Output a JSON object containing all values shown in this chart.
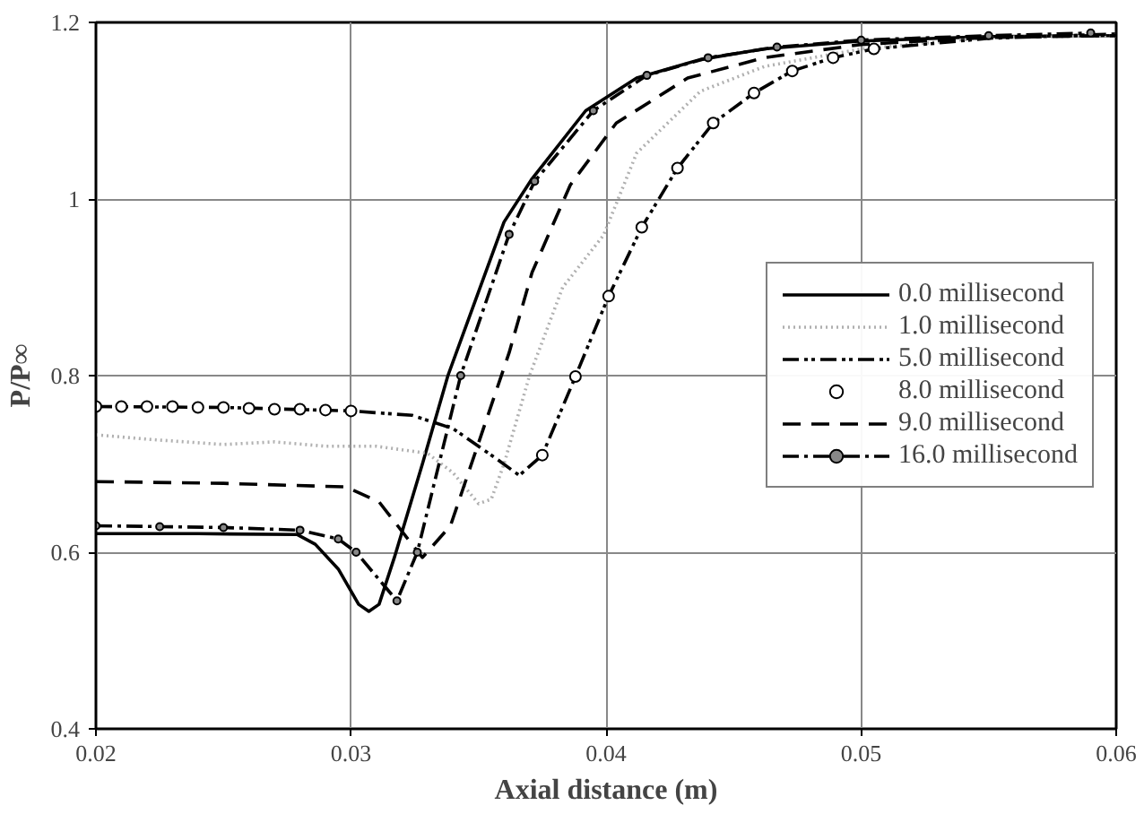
{
  "chart_data": {
    "type": "line",
    "xlabel": "Axial distance (m)",
    "ylabel": "P/P∞",
    "xlim": [
      0.02,
      0.06
    ],
    "ylim": [
      0.4,
      1.2
    ],
    "xticks": [
      0.02,
      0.03,
      0.04,
      0.05,
      0.06
    ],
    "yticks": [
      0.4,
      0.6,
      0.8,
      1,
      1.2
    ],
    "grid": true,
    "legend": "right",
    "series": [
      {
        "name": "0.0 millisecond",
        "color": "#000000",
        "line_style": "solid",
        "x": [
          0.02,
          0.024,
          0.0279,
          0.0286,
          0.0295,
          0.0303,
          0.0307,
          0.0311,
          0.0317,
          0.0328,
          0.0338,
          0.036,
          0.0371,
          0.0392,
          0.0412,
          0.0437,
          0.0462,
          0.05,
          0.055,
          0.06
        ],
        "values": [
          0.621,
          0.621,
          0.62,
          0.609,
          0.581,
          0.541,
          0.533,
          0.541,
          0.594,
          0.7,
          0.8,
          0.974,
          1.023,
          1.1,
          1.137,
          1.158,
          1.17,
          1.179,
          1.184,
          1.185
        ]
      },
      {
        "name": "1.0 millisecond",
        "color": "#b0b0b0",
        "line_style": "dotted",
        "x": [
          0.02,
          0.022,
          0.025,
          0.027,
          0.029,
          0.031,
          0.033,
          0.034,
          0.035,
          0.0355,
          0.036,
          0.037,
          0.0383,
          0.0399,
          0.0412,
          0.0437,
          0.0462,
          0.05,
          0.055,
          0.06
        ],
        "values": [
          0.733,
          0.728,
          0.722,
          0.725,
          0.72,
          0.72,
          0.712,
          0.69,
          0.655,
          0.66,
          0.7,
          0.8,
          0.9,
          0.959,
          1.052,
          1.122,
          1.15,
          1.17,
          1.183,
          1.185
        ]
      },
      {
        "name": "5.0 millisecond",
        "color": "#000000",
        "line_style": "dashdotdot",
        "x": [
          0.02,
          0.025,
          0.03,
          0.0324,
          0.034,
          0.0355,
          0.0366,
          0.0375,
          0.0388,
          0.0401,
          0.0414,
          0.0428,
          0.0442,
          0.0458,
          0.0473,
          0.0489,
          0.0505,
          0.055,
          0.06
        ],
        "values": [
          0.765,
          0.764,
          0.76,
          0.755,
          0.74,
          0.71,
          0.687,
          0.71,
          0.799,
          0.89,
          0.968,
          1.035,
          1.086,
          1.12,
          1.145,
          1.16,
          1.17,
          1.182,
          1.187
        ]
      },
      {
        "name": "8.0 millisecond",
        "type": "scatter",
        "color": "#000000",
        "marker": "circle",
        "x": [
          0.02,
          0.021,
          0.022,
          0.023,
          0.024,
          0.025,
          0.026,
          0.027,
          0.028,
          0.029,
          0.03,
          0.0375,
          0.0388,
          0.0401,
          0.0414,
          0.0428,
          0.0442,
          0.0458,
          0.0473,
          0.0489,
          0.0505
        ],
        "values": [
          0.765,
          0.765,
          0.765,
          0.765,
          0.764,
          0.764,
          0.763,
          0.762,
          0.762,
          0.761,
          0.76,
          0.71,
          0.799,
          0.89,
          0.968,
          1.035,
          1.086,
          1.12,
          1.145,
          1.16,
          1.17
        ]
      },
      {
        "name": "9.0 millisecond",
        "color": "#000000",
        "line_style": "dashed",
        "x": [
          0.02,
          0.025,
          0.0298,
          0.0311,
          0.0328,
          0.0339,
          0.0362,
          0.0371,
          0.0386,
          0.0404,
          0.0432,
          0.0462,
          0.05,
          0.055,
          0.06
        ],
        "values": [
          0.68,
          0.678,
          0.674,
          0.657,
          0.594,
          0.63,
          0.826,
          0.917,
          1.016,
          1.086,
          1.137,
          1.16,
          1.175,
          1.183,
          1.185
        ]
      },
      {
        "name": "16.0 millisecond",
        "color": "#000000",
        "line_style": "dashdot",
        "marker": "circle",
        "x": [
          0.02,
          0.0225,
          0.025,
          0.028,
          0.0295,
          0.0302,
          0.0318,
          0.0326,
          0.0343,
          0.0362,
          0.0372,
          0.0395,
          0.0416,
          0.044,
          0.0467,
          0.05,
          0.055,
          0.059
        ],
        "values": [
          0.63,
          0.629,
          0.628,
          0.625,
          0.615,
          0.6,
          0.545,
          0.6,
          0.8,
          0.96,
          1.02,
          1.1,
          1.14,
          1.16,
          1.172,
          1.18,
          1.185,
          1.188
        ]
      }
    ]
  }
}
